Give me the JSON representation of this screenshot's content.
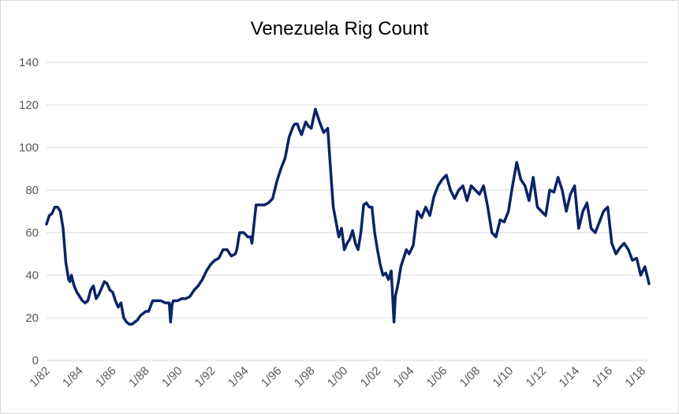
{
  "chart_data": {
    "type": "line",
    "title": "Venezuela Rig Count",
    "xlabel": "",
    "ylabel": "",
    "ylim": [
      0,
      140
    ],
    "yticks": [
      0,
      20,
      40,
      60,
      80,
      100,
      120,
      140
    ],
    "xlim": [
      "1982-01",
      "2018-06"
    ],
    "xticks": [
      "1/82",
      "1/84",
      "1/86",
      "1/88",
      "1/90",
      "1/92",
      "1/94",
      "1/96",
      "1/98",
      "1/00",
      "1/02",
      "1/04",
      "1/06",
      "1/08",
      "1/10",
      "1/12",
      "1/14",
      "1/16",
      "1/18"
    ],
    "grid": true,
    "legend": "none",
    "line_color": "#0b2466",
    "series": [
      {
        "x": [
          "1982-01",
          "1982-03",
          "1982-05",
          "1982-07",
          "1982-09",
          "1982-11",
          "1983-01",
          "1983-03",
          "1983-05",
          "1983-06",
          "1983-07",
          "1983-09",
          "1983-11",
          "1984-01",
          "1984-03",
          "1984-05",
          "1984-07",
          "1984-09",
          "1984-11",
          "1985-01",
          "1985-03",
          "1985-05",
          "1985-07",
          "1985-09",
          "1985-11",
          "1986-01",
          "1986-03",
          "1986-05",
          "1986-07",
          "1986-09",
          "1986-11",
          "1987-01",
          "1987-03",
          "1987-05",
          "1987-07",
          "1987-09",
          "1987-11",
          "1988-01",
          "1988-03",
          "1988-06",
          "1988-09",
          "1988-12",
          "1989-03",
          "1989-06",
          "1989-07",
          "1989-08",
          "1989-09",
          "1989-12",
          "1990-03",
          "1990-06",
          "1990-09",
          "1990-12",
          "1991-03",
          "1991-06",
          "1991-09",
          "1991-12",
          "1992-03",
          "1992-06",
          "1992-09",
          "1992-12",
          "1993-03",
          "1993-06",
          "1993-07",
          "1993-09",
          "1993-12",
          "1994-03",
          "1994-05",
          "1994-06",
          "1994-09",
          "1994-12",
          "1995-03",
          "1995-06",
          "1995-09",
          "1995-12",
          "1996-03",
          "1996-06",
          "1996-09",
          "1996-12",
          "1997-01",
          "1997-03",
          "1997-04",
          "1997-06",
          "1997-09",
          "1997-11",
          "1998-01",
          "1998-04",
          "1998-07",
          "1998-10",
          "1999-01",
          "1999-03",
          "1999-05",
          "1999-07",
          "1999-09",
          "1999-11",
          "2000-01",
          "2000-03",
          "2000-05",
          "2000-07",
          "2000-09",
          "2000-11",
          "2001-01",
          "2001-03",
          "2001-05",
          "2001-07",
          "2001-09",
          "2001-11",
          "2002-01",
          "2002-03",
          "2002-05",
          "2002-07",
          "2002-09",
          "2002-11",
          "2003-01",
          "2003-02",
          "2003-04",
          "2003-06",
          "2003-08",
          "2003-10",
          "2003-12",
          "2004-03",
          "2004-06",
          "2004-09",
          "2004-12",
          "2005-03",
          "2005-06",
          "2005-09",
          "2005-12",
          "2006-03",
          "2006-06",
          "2006-09",
          "2006-12",
          "2007-03",
          "2007-06",
          "2007-09",
          "2007-12",
          "2008-03",
          "2008-06",
          "2008-09",
          "2008-12",
          "2009-03",
          "2009-06",
          "2009-09",
          "2009-12",
          "2010-03",
          "2010-06",
          "2010-09",
          "2010-12",
          "2011-03",
          "2011-06",
          "2011-09",
          "2011-12",
          "2012-03",
          "2012-06",
          "2012-09",
          "2012-12",
          "2013-03",
          "2013-06",
          "2013-09",
          "2013-12",
          "2014-03",
          "2014-06",
          "2014-09",
          "2014-12",
          "2015-03",
          "2015-06",
          "2015-09",
          "2015-12",
          "2016-03",
          "2016-06",
          "2016-09",
          "2016-12",
          "2017-03",
          "2017-06",
          "2017-09",
          "2017-12",
          "2018-03",
          "2018-06"
        ],
        "y": [
          64,
          68,
          69,
          72,
          72,
          70,
          62,
          46,
          38,
          37,
          40,
          35,
          32,
          30,
          28,
          27,
          28,
          33,
          35,
          29,
          31,
          34,
          37,
          36,
          33,
          32,
          28,
          25,
          27,
          20,
          18,
          17,
          17,
          18,
          19,
          21,
          22,
          23,
          23,
          28,
          28,
          28,
          27,
          27,
          18,
          26,
          28,
          28,
          29,
          29,
          30,
          33,
          35,
          38,
          42,
          45,
          47,
          48,
          52,
          52,
          49,
          50,
          52,
          60,
          60,
          58,
          58,
          55,
          73,
          73,
          73,
          74,
          76,
          84,
          90,
          95,
          105,
          110,
          111,
          111,
          109,
          106,
          112,
          110,
          109,
          118,
          112,
          107,
          109,
          90,
          72,
          65,
          58,
          62,
          52,
          55,
          57,
          61,
          55,
          52,
          60,
          73,
          74,
          72,
          72,
          60,
          52,
          45,
          40,
          41,
          38,
          42,
          18,
          30,
          36,
          44,
          48,
          52,
          50,
          54,
          70,
          67,
          72,
          68,
          77,
          82,
          85,
          87,
          80,
          76,
          80,
          82,
          75,
          82,
          80,
          78,
          82,
          72,
          60,
          58,
          66,
          65,
          70,
          82,
          93,
          85,
          82,
          75,
          86,
          72,
          70,
          68,
          80,
          79,
          86,
          80,
          70,
          78,
          82,
          62,
          70,
          74,
          62,
          60,
          65,
          70,
          72,
          55,
          50,
          53,
          55,
          52,
          47,
          48,
          40,
          44,
          36
        ]
      }
    ]
  }
}
